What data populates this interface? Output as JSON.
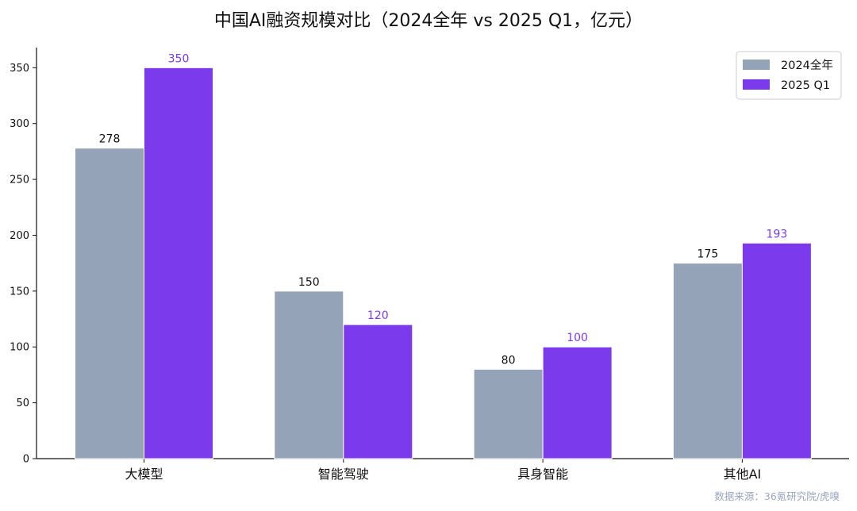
{
  "chart_data": {
    "type": "bar",
    "title": "中国AI融资规模对比（2024全年 vs 2025 Q1，亿元）",
    "categories": [
      "大模型",
      "智能驾驶",
      "具身智能",
      "其他AI"
    ],
    "series": [
      {
        "name": "2024全年",
        "values": [
          278,
          150,
          80,
          175
        ],
        "color": "#94a3b8",
        "label_color": "#111111"
      },
      {
        "name": "2025 Q1",
        "values": [
          350,
          120,
          100,
          193
        ],
        "color": "#7c3aed",
        "label_color": "#7c3aed"
      }
    ],
    "xlabel": "",
    "ylabel": "",
    "ylim": [
      0,
      368
    ],
    "yticks": [
      0,
      50,
      100,
      150,
      200,
      250,
      300,
      350
    ],
    "grid": false,
    "legend_position": "top-right",
    "source": "数据来源：36氪研究院/虎嗅"
  }
}
